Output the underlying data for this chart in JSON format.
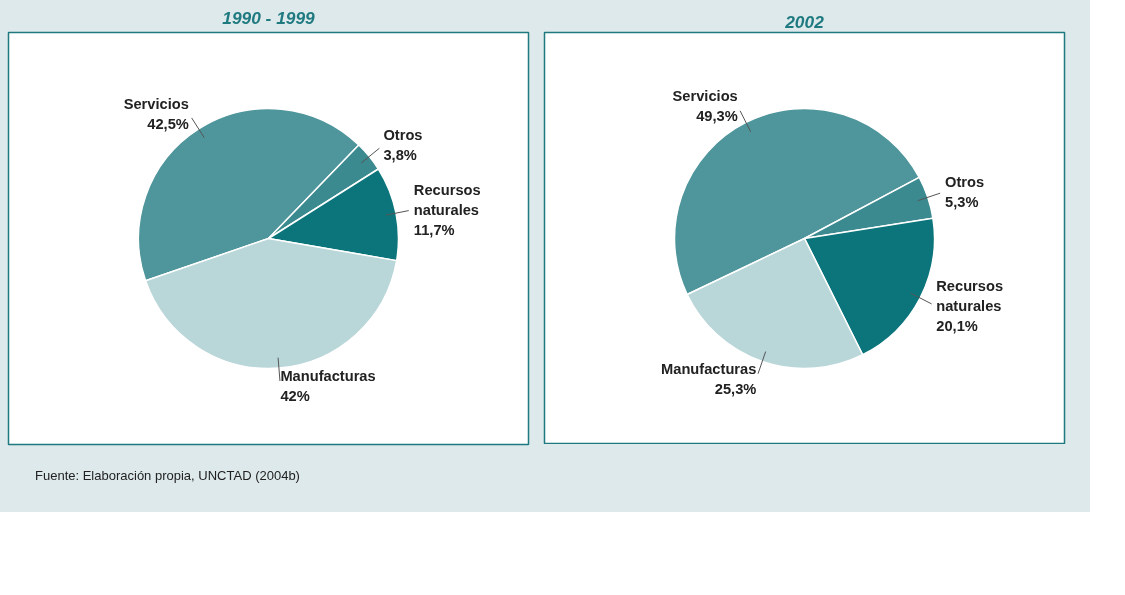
{
  "chart_data": [
    {
      "type": "pie",
      "title": "1990 - 1999",
      "categories": [
        "Servicios",
        "Otros",
        "Recursos naturales",
        "Manufacturas"
      ],
      "values": [
        42.5,
        3.8,
        11.7,
        42
      ],
      "value_labels": [
        "42,5%",
        "3,8%",
        "11,7%",
        "42%"
      ],
      "colors": [
        "#4f959c",
        "#3a8a90",
        "#0b757b",
        "#b9d6d9"
      ],
      "annotations": [
        "Fuente: Elaboración propia, UNCTAD (2004b)"
      ]
    },
    {
      "type": "pie",
      "title": "2002",
      "categories": [
        "Servicios",
        "Otros",
        "Recursos naturales",
        "Manufacturas"
      ],
      "values": [
        49.3,
        5.3,
        20.1,
        25.3
      ],
      "value_labels": [
        "49,3%",
        "5,3%",
        "20,1%",
        "25,3%"
      ],
      "colors": [
        "#4f959c",
        "#3a8a90",
        "#0b757b",
        "#b9d6d9"
      ]
    }
  ]
}
